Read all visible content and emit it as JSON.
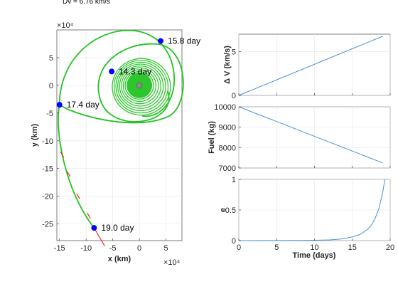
{
  "header_text": "Dv = 6.76 km/s",
  "colors": {
    "trajectory": "#22c422",
    "marker": "#0000ff",
    "line": "#4a8fd4",
    "thrust": "#ff0000",
    "body": "#888888"
  },
  "chart_data": [
    {
      "type": "line",
      "name": "trajectory",
      "xlabel": "x (km)",
      "ylabel": "y (km)",
      "x_exponent": "×10⁴",
      "y_exponent": "×10⁴",
      "xlim": [
        -15.5,
        8
      ],
      "ylim": [
        -28,
        10
      ],
      "xticks": [
        -15,
        -10,
        -5,
        0,
        5
      ],
      "yticks": [
        5,
        0,
        -5,
        -10,
        -15,
        -20,
        -25
      ],
      "grid": true,
      "markers": [
        {
          "x": 4.0,
          "y": 8.0,
          "label": "15.8 day"
        },
        {
          "x": -5.2,
          "y": 2.5,
          "label": "14.3 day"
        },
        {
          "x": -15.0,
          "y": -3.5,
          "label": "17.4 day"
        },
        {
          "x": -8.5,
          "y": -25.7,
          "label": "19.0 day"
        }
      ]
    },
    {
      "type": "line",
      "name": "delta_v",
      "ylabel": "Δ V (km/s)",
      "xlim": [
        0,
        20
      ],
      "ylim": [
        0,
        7
      ],
      "yticks": [
        0,
        5
      ],
      "grid": true,
      "x": [
        0,
        19
      ],
      "y": [
        0,
        6.76
      ]
    },
    {
      "type": "line",
      "name": "fuel",
      "ylabel": "Fuel (kg)",
      "xlim": [
        0,
        20
      ],
      "ylim": [
        7000,
        10000
      ],
      "yticks": [
        7000,
        8000,
        9000,
        10000
      ],
      "grid": true,
      "x": [
        0,
        19
      ],
      "y": [
        10000,
        7250
      ]
    },
    {
      "type": "line",
      "name": "eccentricity",
      "ylabel": "e",
      "xlabel": "Time (days)",
      "xlim": [
        0,
        20
      ],
      "ylim": [
        0,
        1
      ],
      "xticks": [
        0,
        5,
        10,
        15,
        20
      ],
      "yticks": [
        0,
        0.5,
        1
      ],
      "grid": true,
      "x": [
        0,
        5,
        8,
        10,
        12,
        13,
        14,
        15,
        16,
        17,
        17.5,
        18,
        18.5,
        19,
        19.3
      ],
      "y": [
        0,
        0.001,
        0.003,
        0.006,
        0.012,
        0.02,
        0.035,
        0.06,
        0.1,
        0.18,
        0.25,
        0.36,
        0.52,
        0.78,
        1.0
      ]
    }
  ]
}
